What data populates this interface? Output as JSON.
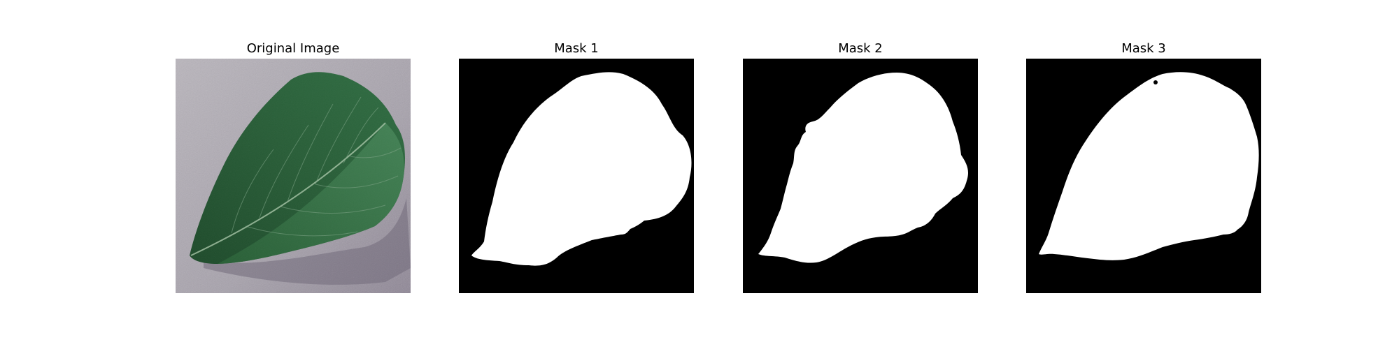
{
  "figure": {
    "panels": [
      {
        "title": "Original Image",
        "content": "leaf-photo"
      },
      {
        "title": "Mask 1",
        "content": "binary-mask"
      },
      {
        "title": "Mask 2",
        "content": "binary-mask"
      },
      {
        "title": "Mask 3",
        "content": "binary-mask"
      }
    ]
  },
  "colors": {
    "background": "#ffffff",
    "mask_background": "#000000",
    "mask_foreground": "#ffffff",
    "leaf_dark": "#1f4a2c",
    "leaf_mid": "#2d6a3e",
    "surface": "#a9a4ae"
  }
}
